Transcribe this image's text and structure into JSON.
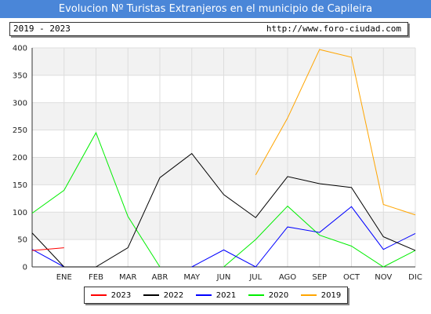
{
  "title": "Evolucion Nº Turistas Extranjeros en el municipio de Capileira",
  "period": "2019 - 2023",
  "url": "http://www.foro-ciudad.com",
  "chart_data": {
    "type": "line",
    "categories": [
      "ENE",
      "FEB",
      "MAR",
      "ABR",
      "MAY",
      "JUN",
      "JUL",
      "AGO",
      "SEP",
      "OCT",
      "NOV",
      "DIC"
    ],
    "ylim": [
      0,
      400
    ],
    "yticks": [
      0,
      50,
      100,
      150,
      200,
      250,
      300,
      350,
      400
    ],
    "grid": true,
    "legend_position": "bottom",
    "series": [
      {
        "name": "2023",
        "color": "#ff0000",
        "values": [
          35,
          null,
          null,
          null,
          null,
          null,
          null,
          null,
          null,
          null,
          null,
          null
        ],
        "start": 30
      },
      {
        "name": "2022",
        "color": "#000000",
        "values": [
          0,
          0,
          35,
          163,
          207,
          132,
          90,
          165,
          152,
          145,
          55,
          30
        ],
        "start": 62
      },
      {
        "name": "2021",
        "color": "#0000ff",
        "values": [
          0,
          null,
          null,
          null,
          0,
          31,
          0,
          73,
          63,
          110,
          32,
          61
        ],
        "start": 32
      },
      {
        "name": "2020",
        "color": "#00ee00",
        "values": [
          140,
          245,
          92,
          0,
          null,
          0,
          50,
          111,
          58,
          38,
          0,
          30
        ],
        "start": 98
      },
      {
        "name": "2019",
        "color": "#ffa500",
        "values": [
          null,
          null,
          null,
          null,
          null,
          null,
          168,
          272,
          397,
          383,
          114,
          95
        ],
        "start": null
      }
    ]
  }
}
